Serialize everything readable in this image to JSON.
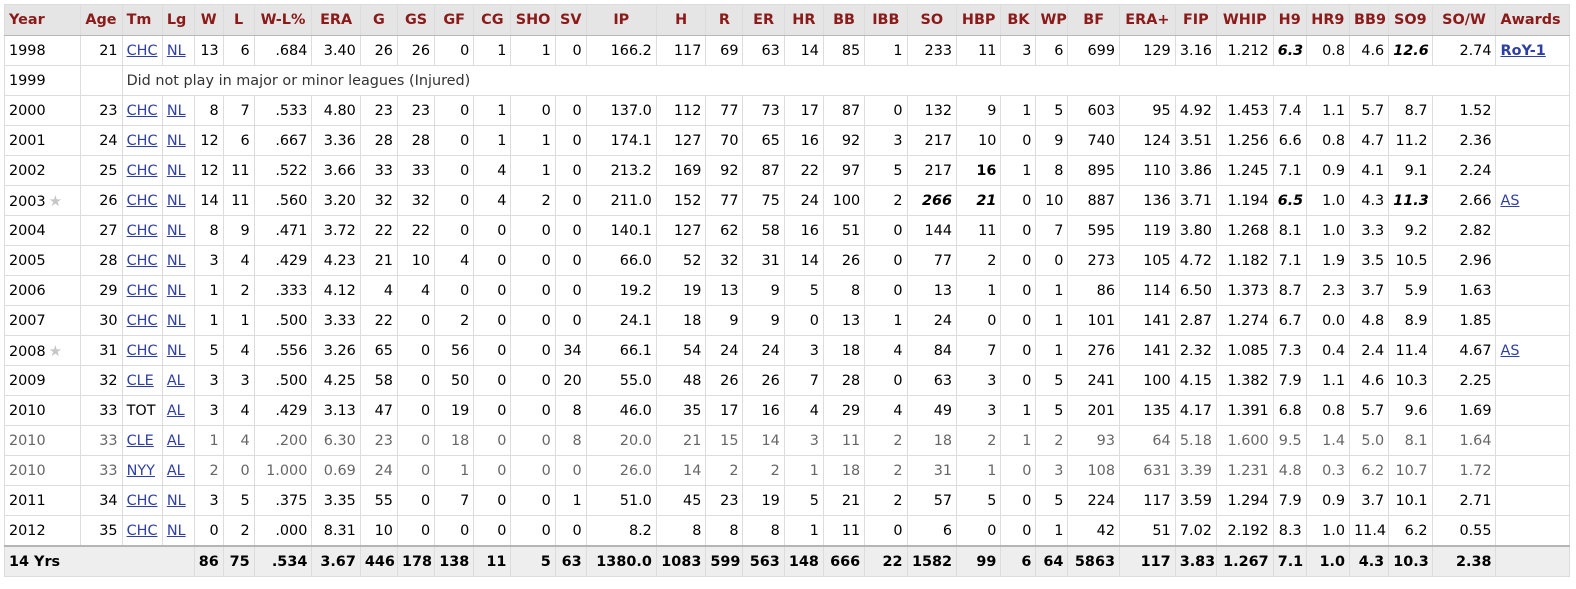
{
  "columns": [
    "Year",
    "Age",
    "Tm",
    "Lg",
    "W",
    "L",
    "W-L%",
    "ERA",
    "G",
    "GS",
    "GF",
    "CG",
    "SHO",
    "SV",
    "IP",
    "H",
    "R",
    "ER",
    "HR",
    "BB",
    "IBB",
    "SO",
    "HBP",
    "BK",
    "WP",
    "BF",
    "ERA+",
    "FIP",
    "WHIP",
    "H9",
    "HR9",
    "BB9",
    "SO9",
    "SO/W",
    "Awards"
  ],
  "rows": [
    {
      "year": "1998",
      "age": "21",
      "tm": "CHC",
      "tm_link": true,
      "lg": "NL",
      "lg_link": true,
      "stats": [
        "13",
        "6",
        ".684",
        "3.40",
        "26",
        "26",
        "0",
        "1",
        "1",
        "0",
        "166.2",
        "117",
        "69",
        "63",
        "14",
        "85",
        "1",
        "233",
        "11",
        "3",
        "6",
        "699",
        "129",
        "3.16",
        "1.212",
        "6.3",
        "0.8",
        "4.6",
        "12.6",
        "2.74"
      ],
      "leaders": [
        25,
        28
      ],
      "awards": "RoY-1",
      "award_bold": true
    },
    {
      "year": "1999",
      "note": "Did not play in major or minor leagues (Injured)"
    },
    {
      "year": "2000",
      "age": "23",
      "tm": "CHC",
      "tm_link": true,
      "lg": "NL",
      "lg_link": true,
      "stats": [
        "8",
        "7",
        ".533",
        "4.80",
        "23",
        "23",
        "0",
        "1",
        "0",
        "0",
        "137.0",
        "112",
        "77",
        "73",
        "17",
        "87",
        "0",
        "132",
        "9",
        "1",
        "5",
        "603",
        "95",
        "4.92",
        "1.453",
        "7.4",
        "1.1",
        "5.7",
        "8.7",
        "1.52"
      ]
    },
    {
      "year": "2001",
      "age": "24",
      "tm": "CHC",
      "tm_link": true,
      "lg": "NL",
      "lg_link": true,
      "stats": [
        "12",
        "6",
        ".667",
        "3.36",
        "28",
        "28",
        "0",
        "1",
        "1",
        "0",
        "174.1",
        "127",
        "70",
        "65",
        "16",
        "92",
        "3",
        "217",
        "10",
        "0",
        "9",
        "740",
        "124",
        "3.51",
        "1.256",
        "6.6",
        "0.8",
        "4.7",
        "11.2",
        "2.36"
      ]
    },
    {
      "year": "2002",
      "age": "25",
      "tm": "CHC",
      "tm_link": true,
      "lg": "NL",
      "lg_link": true,
      "stats": [
        "12",
        "11",
        ".522",
        "3.66",
        "33",
        "33",
        "0",
        "4",
        "1",
        "0",
        "213.2",
        "169",
        "92",
        "87",
        "22",
        "97",
        "5",
        "217",
        "16",
        "1",
        "8",
        "895",
        "110",
        "3.86",
        "1.245",
        "7.1",
        "0.9",
        "4.1",
        "9.1",
        "2.24"
      ],
      "bold": [
        18
      ]
    },
    {
      "year": "2003",
      "star": true,
      "age": "26",
      "tm": "CHC",
      "tm_link": true,
      "lg": "NL",
      "lg_link": true,
      "stats": [
        "14",
        "11",
        ".560",
        "3.20",
        "32",
        "32",
        "0",
        "4",
        "2",
        "0",
        "211.0",
        "152",
        "77",
        "75",
        "24",
        "100",
        "2",
        "266",
        "21",
        "0",
        "10",
        "887",
        "136",
        "3.71",
        "1.194",
        "6.5",
        "1.0",
        "4.3",
        "11.3",
        "2.66"
      ],
      "leaders": [
        17,
        18,
        25,
        28
      ],
      "awards": "AS"
    },
    {
      "year": "2004",
      "age": "27",
      "tm": "CHC",
      "tm_link": true,
      "lg": "NL",
      "lg_link": true,
      "stats": [
        "8",
        "9",
        ".471",
        "3.72",
        "22",
        "22",
        "0",
        "0",
        "0",
        "0",
        "140.1",
        "127",
        "62",
        "58",
        "16",
        "51",
        "0",
        "144",
        "11",
        "0",
        "7",
        "595",
        "119",
        "3.80",
        "1.268",
        "8.1",
        "1.0",
        "3.3",
        "9.2",
        "2.82"
      ]
    },
    {
      "year": "2005",
      "age": "28",
      "tm": "CHC",
      "tm_link": true,
      "lg": "NL",
      "lg_link": true,
      "stats": [
        "3",
        "4",
        ".429",
        "4.23",
        "21",
        "10",
        "4",
        "0",
        "0",
        "0",
        "66.0",
        "52",
        "32",
        "31",
        "14",
        "26",
        "0",
        "77",
        "2",
        "0",
        "0",
        "273",
        "105",
        "4.72",
        "1.182",
        "7.1",
        "1.9",
        "3.5",
        "10.5",
        "2.96"
      ]
    },
    {
      "year": "2006",
      "age": "29",
      "tm": "CHC",
      "tm_link": true,
      "lg": "NL",
      "lg_link": true,
      "stats": [
        "1",
        "2",
        ".333",
        "4.12",
        "4",
        "4",
        "0",
        "0",
        "0",
        "0",
        "19.2",
        "19",
        "13",
        "9",
        "5",
        "8",
        "0",
        "13",
        "1",
        "0",
        "1",
        "86",
        "114",
        "6.50",
        "1.373",
        "8.7",
        "2.3",
        "3.7",
        "5.9",
        "1.63"
      ]
    },
    {
      "year": "2007",
      "age": "30",
      "tm": "CHC",
      "tm_link": true,
      "lg": "NL",
      "lg_link": true,
      "stats": [
        "1",
        "1",
        ".500",
        "3.33",
        "22",
        "0",
        "2",
        "0",
        "0",
        "0",
        "24.1",
        "18",
        "9",
        "9",
        "0",
        "13",
        "1",
        "24",
        "0",
        "0",
        "1",
        "101",
        "141",
        "2.87",
        "1.274",
        "6.7",
        "0.0",
        "4.8",
        "8.9",
        "1.85"
      ]
    },
    {
      "year": "2008",
      "star": true,
      "age": "31",
      "tm": "CHC",
      "tm_link": true,
      "lg": "NL",
      "lg_link": true,
      "stats": [
        "5",
        "4",
        ".556",
        "3.26",
        "65",
        "0",
        "56",
        "0",
        "0",
        "34",
        "66.1",
        "54",
        "24",
        "24",
        "3",
        "18",
        "4",
        "84",
        "7",
        "0",
        "1",
        "276",
        "141",
        "2.32",
        "1.085",
        "7.3",
        "0.4",
        "2.4",
        "11.4",
        "4.67"
      ],
      "awards": "AS"
    },
    {
      "year": "2009",
      "age": "32",
      "tm": "CLE",
      "tm_link": true,
      "lg": "AL",
      "lg_link": true,
      "stats": [
        "3",
        "3",
        ".500",
        "4.25",
        "58",
        "0",
        "50",
        "0",
        "0",
        "20",
        "55.0",
        "48",
        "26",
        "26",
        "7",
        "28",
        "0",
        "63",
        "3",
        "0",
        "5",
        "241",
        "100",
        "4.15",
        "1.382",
        "7.9",
        "1.1",
        "4.6",
        "10.3",
        "2.25"
      ]
    },
    {
      "year": "2010",
      "age": "33",
      "tm": "TOT",
      "tm_link": false,
      "lg": "AL",
      "lg_link": true,
      "stats": [
        "3",
        "4",
        ".429",
        "3.13",
        "47",
        "0",
        "19",
        "0",
        "0",
        "8",
        "46.0",
        "35",
        "17",
        "16",
        "4",
        "29",
        "4",
        "49",
        "3",
        "1",
        "5",
        "201",
        "135",
        "4.17",
        "1.391",
        "6.8",
        "0.8",
        "5.7",
        "9.6",
        "1.69"
      ]
    },
    {
      "year": "2010",
      "partial": true,
      "age": "33",
      "tm": "CLE",
      "tm_link": true,
      "lg": "AL",
      "lg_link": true,
      "stats": [
        "1",
        "4",
        ".200",
        "6.30",
        "23",
        "0",
        "18",
        "0",
        "0",
        "8",
        "20.0",
        "21",
        "15",
        "14",
        "3",
        "11",
        "2",
        "18",
        "2",
        "1",
        "2",
        "93",
        "64",
        "5.18",
        "1.600",
        "9.5",
        "1.4",
        "5.0",
        "8.1",
        "1.64"
      ]
    },
    {
      "year": "2010",
      "partial": true,
      "age": "33",
      "tm": "NYY",
      "tm_link": true,
      "lg": "AL",
      "lg_link": true,
      "stats": [
        "2",
        "0",
        "1.000",
        "0.69",
        "24",
        "0",
        "1",
        "0",
        "0",
        "0",
        "26.0",
        "14",
        "2",
        "2",
        "1",
        "18",
        "2",
        "31",
        "1",
        "0",
        "3",
        "108",
        "631",
        "3.39",
        "1.231",
        "4.8",
        "0.3",
        "6.2",
        "10.7",
        "1.72"
      ]
    },
    {
      "year": "2011",
      "age": "34",
      "tm": "CHC",
      "tm_link": true,
      "lg": "NL",
      "lg_link": true,
      "stats": [
        "3",
        "5",
        ".375",
        "3.35",
        "55",
        "0",
        "7",
        "0",
        "0",
        "1",
        "51.0",
        "45",
        "23",
        "19",
        "5",
        "21",
        "2",
        "57",
        "5",
        "0",
        "5",
        "224",
        "117",
        "3.59",
        "1.294",
        "7.9",
        "0.9",
        "3.7",
        "10.1",
        "2.71"
      ]
    },
    {
      "year": "2012",
      "age": "35",
      "tm": "CHC",
      "tm_link": true,
      "lg": "NL",
      "lg_link": true,
      "stats": [
        "0",
        "2",
        ".000",
        "8.31",
        "10",
        "0",
        "0",
        "0",
        "0",
        "0",
        "8.2",
        "8",
        "8",
        "8",
        "1",
        "11",
        "0",
        "6",
        "0",
        "0",
        "1",
        "42",
        "51",
        "7.02",
        "2.192",
        "8.3",
        "1.0",
        "11.4",
        "6.2",
        "0.55"
      ]
    }
  ],
  "total": {
    "label": "14 Yrs",
    "stats": [
      "86",
      "75",
      ".534",
      "3.67",
      "446",
      "178",
      "138",
      "11",
      "5",
      "63",
      "1380.0",
      "1083",
      "599",
      "563",
      "148",
      "666",
      "22",
      "1582",
      "99",
      "6",
      "64",
      "5863",
      "117",
      "3.83",
      "1.267",
      "7.1",
      "1.0",
      "4.3",
      "10.3",
      "2.38"
    ]
  },
  "colors": {
    "header_text": "#8b1a1a",
    "link": "#2f3fa3",
    "header_bg": "#e5e5e5",
    "total_bg": "#eeeeee"
  }
}
